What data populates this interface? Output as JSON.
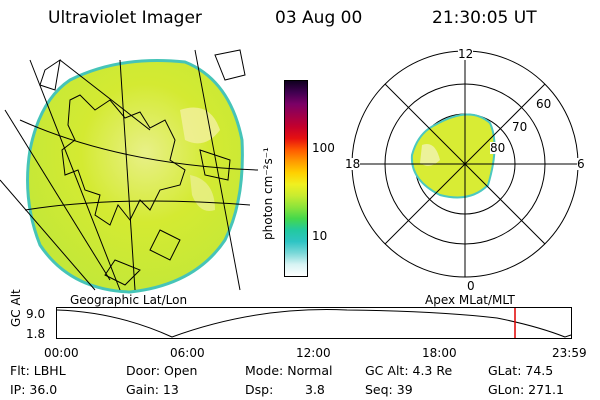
{
  "header": {
    "instrument": "Ultraviolet Imager",
    "date": "03 Aug 00",
    "time": "21:30:05 UT"
  },
  "left_panel": {
    "caption": "Geographic Lat/Lon"
  },
  "colorbar": {
    "unit_label": "photon cm⁻²s⁻¹",
    "ticks": [
      "100",
      "10"
    ],
    "colors": [
      "#ffffff",
      "#d8f4f4",
      "#7ad8d8",
      "#2ec4c4",
      "#22c9a0",
      "#44d84c",
      "#8ce43a",
      "#c8ec30",
      "#f0f020",
      "#ffd000",
      "#ff9a00",
      "#ff5a00",
      "#e61010",
      "#c4002c",
      "#a0004a",
      "#7a0066",
      "#400050",
      "#100020"
    ]
  },
  "right_panel": {
    "caption": "Apex MLat/MLT",
    "mlt_labels": [
      "12",
      "18",
      "6",
      "0"
    ],
    "lat_labels": [
      "60",
      "70",
      "80"
    ]
  },
  "altitude_plot": {
    "axis_label": "GC Alt",
    "y_ticks": [
      "9.0",
      "1.8"
    ],
    "x_ticks": [
      "00:00",
      "06:00",
      "12:00",
      "18:00",
      "23:59"
    ]
  },
  "footer": {
    "row1": [
      "Flt: LBHL",
      "Door: Open",
      "Mode: Normal",
      "GC Alt: 4.3 Re",
      "GLat: 74.5"
    ],
    "row2": [
      "IP: 36.0",
      "Gain: 13",
      "Dsp:",
      "3.8",
      "Seq: 39",
      "GLon: 271.1"
    ]
  },
  "theme": {
    "aurora_fill": "#d8ec34",
    "aurora_light": "#ecf29a",
    "aurora_edge": "#4cc8c0",
    "marker_color": "#e00000"
  }
}
